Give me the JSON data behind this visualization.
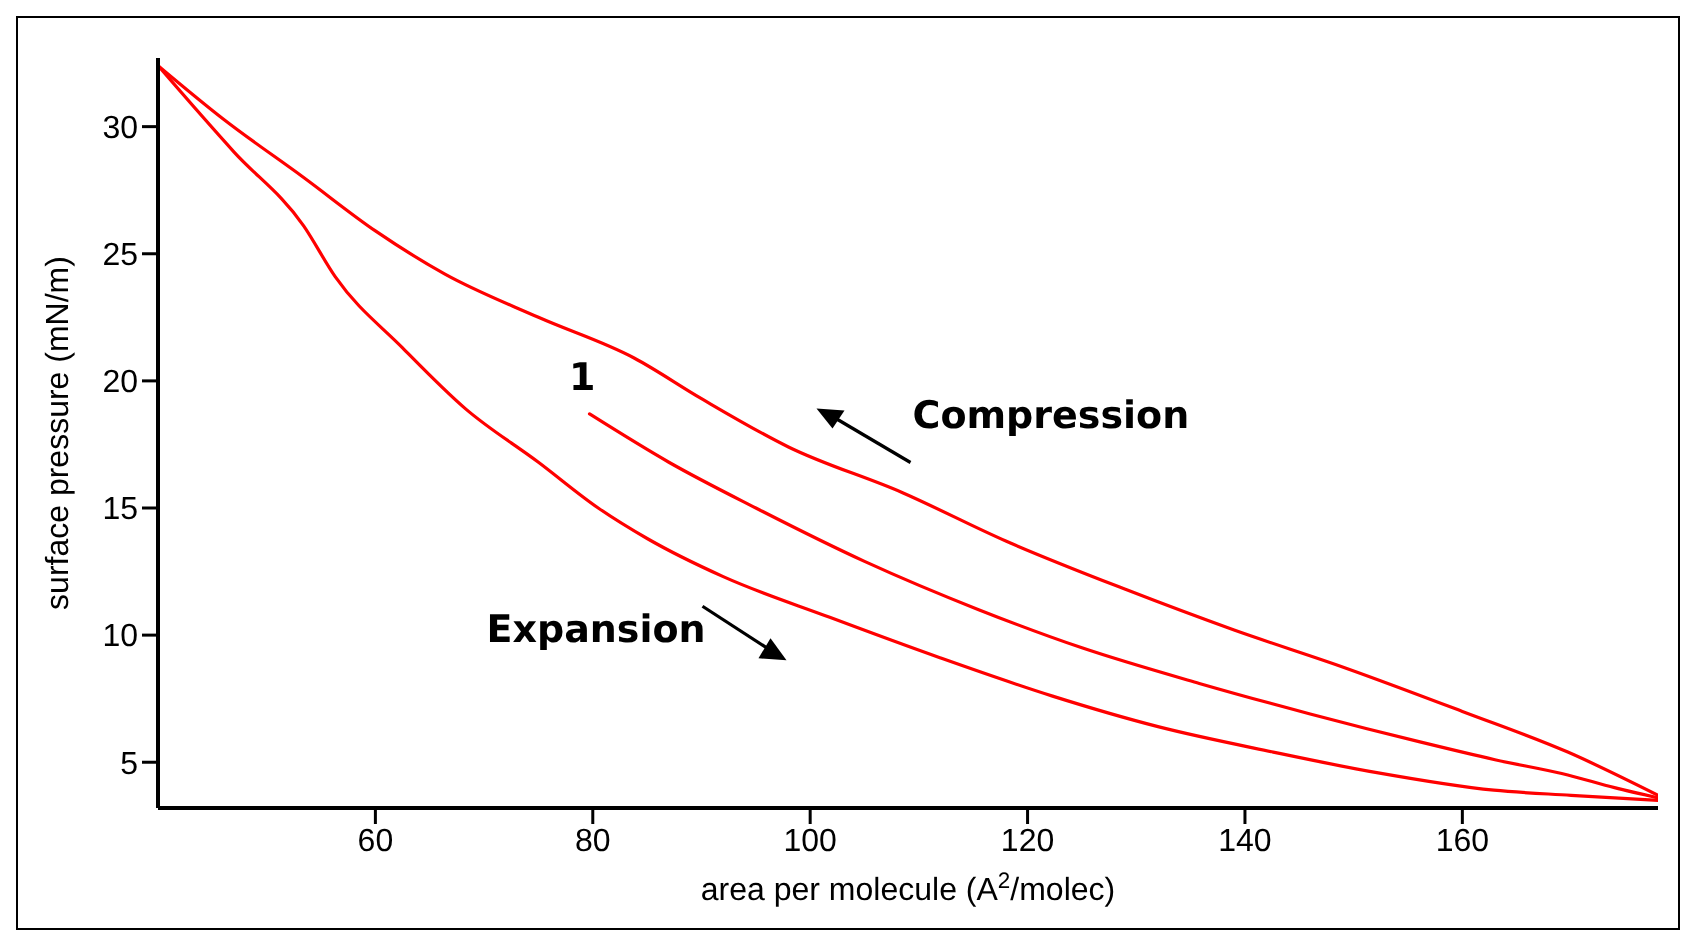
{
  "chart_data": {
    "type": "line",
    "xlabel": "area per molecule (A$^{2}$/molec)",
    "ylabel": "surface pressure (mN/m)",
    "xlim": [
      40,
      178
    ],
    "ylim": [
      3.2,
      32.7
    ],
    "xticks": [
      60,
      80,
      100,
      120,
      140,
      160
    ],
    "yticks": [
      5,
      10,
      15,
      20,
      25,
      30
    ],
    "grid": false,
    "marker": "none",
    "line_style": "solid",
    "series": [
      {
        "color": "#ff0000",
        "x": [
          40,
          46,
          53.4,
          60,
          66.4,
          75,
          83.8,
          90,
          98,
          108.5,
          118,
          129,
          139,
          149.3,
          160,
          169.7,
          178
        ],
        "values": [
          32.4,
          30.3,
          28.0,
          25.9,
          24.2,
          22.5,
          20.9,
          19.3,
          17.4,
          15.6,
          13.7,
          11.8,
          10.2,
          8.7,
          7.0,
          5.4,
          3.7
        ]
      },
      {
        "color": "#ff0000",
        "x": [
          79.7,
          87,
          95,
          105,
          115.5,
          125,
          135.8,
          146,
          156.1,
          163,
          169.7,
          174,
          178
        ],
        "values": [
          18.7,
          16.8,
          15.0,
          12.9,
          11.0,
          9.5,
          8.1,
          6.9,
          5.8,
          5.1,
          4.5,
          4.0,
          3.6
        ]
      },
      {
        "color": "#ff0000",
        "x": [
          40,
          47,
          53.4,
          56.3,
          62.5,
          68.3,
          75,
          80.5,
          85,
          92,
          101.8,
          112,
          122.3,
          132,
          142.6,
          152,
          162.9,
          170,
          178
        ],
        "values": [
          32.4,
          29.0,
          26.1,
          24.1,
          21.3,
          18.9,
          16.8,
          15.0,
          13.8,
          12.3,
          10.7,
          9.1,
          7.6,
          6.4,
          5.4,
          4.6,
          3.9,
          3.7,
          3.5
        ]
      }
    ],
    "annotations": [
      "1",
      "Compression",
      "Expansion"
    ]
  }
}
